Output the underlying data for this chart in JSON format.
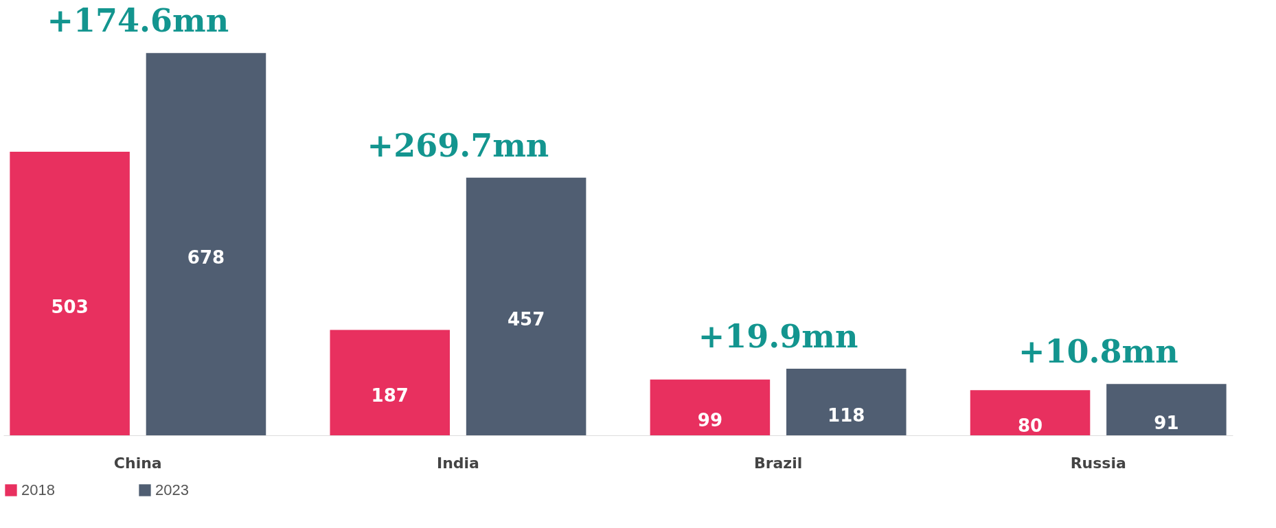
{
  "chart_data": {
    "type": "bar",
    "categories": [
      "China",
      "India",
      "Brazil",
      "Russia"
    ],
    "series": [
      {
        "name": "2018",
        "color": "#e8305f",
        "values": [
          503,
          187,
          99,
          80
        ]
      },
      {
        "name": "2023",
        "color": "#505e72",
        "values": [
          678,
          457,
          118,
          91
        ]
      }
    ],
    "data_labels": true,
    "legend": "bottom",
    "grid": false,
    "annotations": [
      "+174.6mn",
      "+269.7mn",
      "+19.9mn",
      "+10.8mn"
    ]
  }
}
